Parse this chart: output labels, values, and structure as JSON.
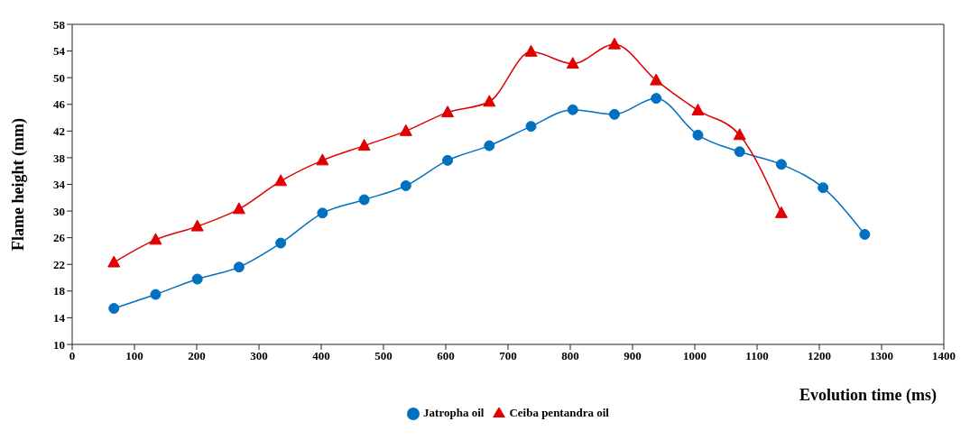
{
  "chart_data": {
    "type": "line",
    "xlabel": "Evolution time  (ms)",
    "ylabel": "Flame height (mm)",
    "x": [
      67,
      134,
      201,
      268,
      335,
      402,
      469,
      536,
      603,
      670,
      737,
      804,
      871,
      938,
      1005,
      1072,
      1139,
      1206,
      1273
    ],
    "series": [
      {
        "name": "Jatropha oil",
        "color": "#0070c0",
        "marker": "circle",
        "values": [
          15.4,
          17.5,
          19.8,
          21.6,
          25.2,
          29.7,
          31.7,
          33.8,
          37.6,
          39.8,
          42.7,
          45.2,
          44.5,
          46.9,
          41.4,
          38.9,
          37.0,
          33.5,
          26.5
        ]
      },
      {
        "name": "Ceiba pentandra oil",
        "color": "#e00000",
        "marker": "triangle",
        "x": [
          67,
          134,
          201,
          268,
          335,
          402,
          469,
          536,
          603,
          670,
          737,
          804,
          871,
          938,
          1005,
          1072,
          1139
        ],
        "values": [
          22.3,
          25.7,
          27.7,
          30.3,
          34.5,
          37.6,
          39.8,
          42.0,
          44.8,
          46.4,
          53.9,
          52.1,
          55.0,
          49.6,
          45.1,
          41.4,
          29.7
        ]
      }
    ],
    "xlim": [
      0,
      1400
    ],
    "xticks": [
      0,
      100,
      200,
      300,
      400,
      500,
      600,
      700,
      800,
      900,
      1000,
      1100,
      1200,
      1300,
      1400
    ],
    "ylim": [
      10,
      58
    ],
    "yticks": [
      10,
      14,
      18,
      22,
      26,
      30,
      34,
      38,
      42,
      46,
      50,
      54,
      58
    ],
    "grid": false,
    "legend": "bottom",
    "line_style": "solid"
  }
}
